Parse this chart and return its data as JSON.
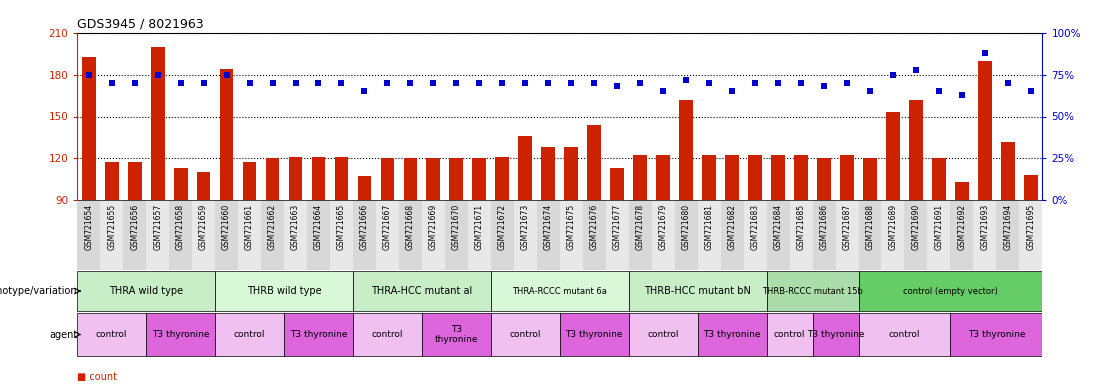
{
  "title": "GDS3945 / 8021963",
  "samples": [
    "GSM721654",
    "GSM721655",
    "GSM721656",
    "GSM721657",
    "GSM721658",
    "GSM721659",
    "GSM721660",
    "GSM721661",
    "GSM721662",
    "GSM721663",
    "GSM721664",
    "GSM721665",
    "GSM721666",
    "GSM721667",
    "GSM721668",
    "GSM721669",
    "GSM721670",
    "GSM721671",
    "GSM721672",
    "GSM721673",
    "GSM721674",
    "GSM721675",
    "GSM721676",
    "GSM721677",
    "GSM721678",
    "GSM721679",
    "GSM721680",
    "GSM721681",
    "GSM721682",
    "GSM721683",
    "GSM721684",
    "GSM721685",
    "GSM721686",
    "GSM721687",
    "GSM721688",
    "GSM721689",
    "GSM721690",
    "GSM721691",
    "GSM721692",
    "GSM721693",
    "GSM721694",
    "GSM721695"
  ],
  "bar_values": [
    193,
    117,
    117,
    200,
    113,
    110,
    184,
    117,
    120,
    121,
    121,
    121,
    107,
    120,
    120,
    120,
    120,
    120,
    121,
    136,
    128,
    128,
    144,
    113,
    122,
    122,
    162,
    122,
    122,
    122,
    122,
    122,
    120,
    122,
    120,
    153,
    162,
    120,
    103,
    190,
    132,
    108
  ],
  "dot_values": [
    75,
    70,
    70,
    75,
    70,
    70,
    75,
    70,
    70,
    70,
    70,
    70,
    65,
    70,
    70,
    70,
    70,
    70,
    70,
    70,
    70,
    70,
    70,
    68,
    70,
    65,
    72,
    70,
    65,
    70,
    70,
    70,
    68,
    70,
    65,
    75,
    78,
    65,
    63,
    88,
    70,
    65
  ],
  "ylim_left": [
    90,
    210
  ],
  "ylim_right": [
    0,
    100
  ],
  "yticks_left": [
    90,
    120,
    150,
    180,
    210
  ],
  "yticks_right": [
    0,
    25,
    50,
    75,
    100
  ],
  "bar_color": "#cc2200",
  "dot_color": "#0000cc",
  "plot_bg_color": "#ffffff",
  "tick_bg_colors": [
    "#d8d8d8",
    "#e8e8e8"
  ],
  "groups": [
    {
      "label": "THRA wild type",
      "start": 0,
      "end": 5,
      "color": "#c8eec8"
    },
    {
      "label": "THRB wild type",
      "start": 6,
      "end": 11,
      "color": "#d8f8d8"
    },
    {
      "label": "THRA-HCC mutant al",
      "start": 12,
      "end": 17,
      "color": "#c8eec8"
    },
    {
      "label": "THRA-RCCC mutant 6a",
      "start": 18,
      "end": 23,
      "color": "#d8f8d8"
    },
    {
      "label": "THRB-HCC mutant bN",
      "start": 24,
      "end": 29,
      "color": "#c8eec8"
    },
    {
      "label": "THRB-RCCC mutant 15b",
      "start": 30,
      "end": 33,
      "color": "#aaddaa"
    },
    {
      "label": "control (empty vector)",
      "start": 34,
      "end": 41,
      "color": "#66cc66"
    }
  ],
  "agent_groups": [
    {
      "label": "control",
      "start": 0,
      "end": 2,
      "color": "#f0c0f0"
    },
    {
      "label": "T3 thyronine",
      "start": 3,
      "end": 5,
      "color": "#dd66dd"
    },
    {
      "label": "control",
      "start": 6,
      "end": 8,
      "color": "#f0c0f0"
    },
    {
      "label": "T3 thyronine",
      "start": 9,
      "end": 11,
      "color": "#dd66dd"
    },
    {
      "label": "control",
      "start": 12,
      "end": 14,
      "color": "#f0c0f0"
    },
    {
      "label": "T3\nthyronine",
      "start": 15,
      "end": 17,
      "color": "#dd66dd"
    },
    {
      "label": "control",
      "start": 18,
      "end": 20,
      "color": "#f0c0f0"
    },
    {
      "label": "T3 thyronine",
      "start": 21,
      "end": 23,
      "color": "#dd66dd"
    },
    {
      "label": "control",
      "start": 24,
      "end": 26,
      "color": "#f0c0f0"
    },
    {
      "label": "T3 thyronine",
      "start": 27,
      "end": 29,
      "color": "#dd66dd"
    },
    {
      "label": "control",
      "start": 30,
      "end": 31,
      "color": "#f0c0f0"
    },
    {
      "label": "T3 thyronine",
      "start": 32,
      "end": 33,
      "color": "#dd66dd"
    },
    {
      "label": "control",
      "start": 34,
      "end": 37,
      "color": "#f0c0f0"
    },
    {
      "label": "T3 thyronine",
      "start": 38,
      "end": 41,
      "color": "#dd66dd"
    }
  ]
}
